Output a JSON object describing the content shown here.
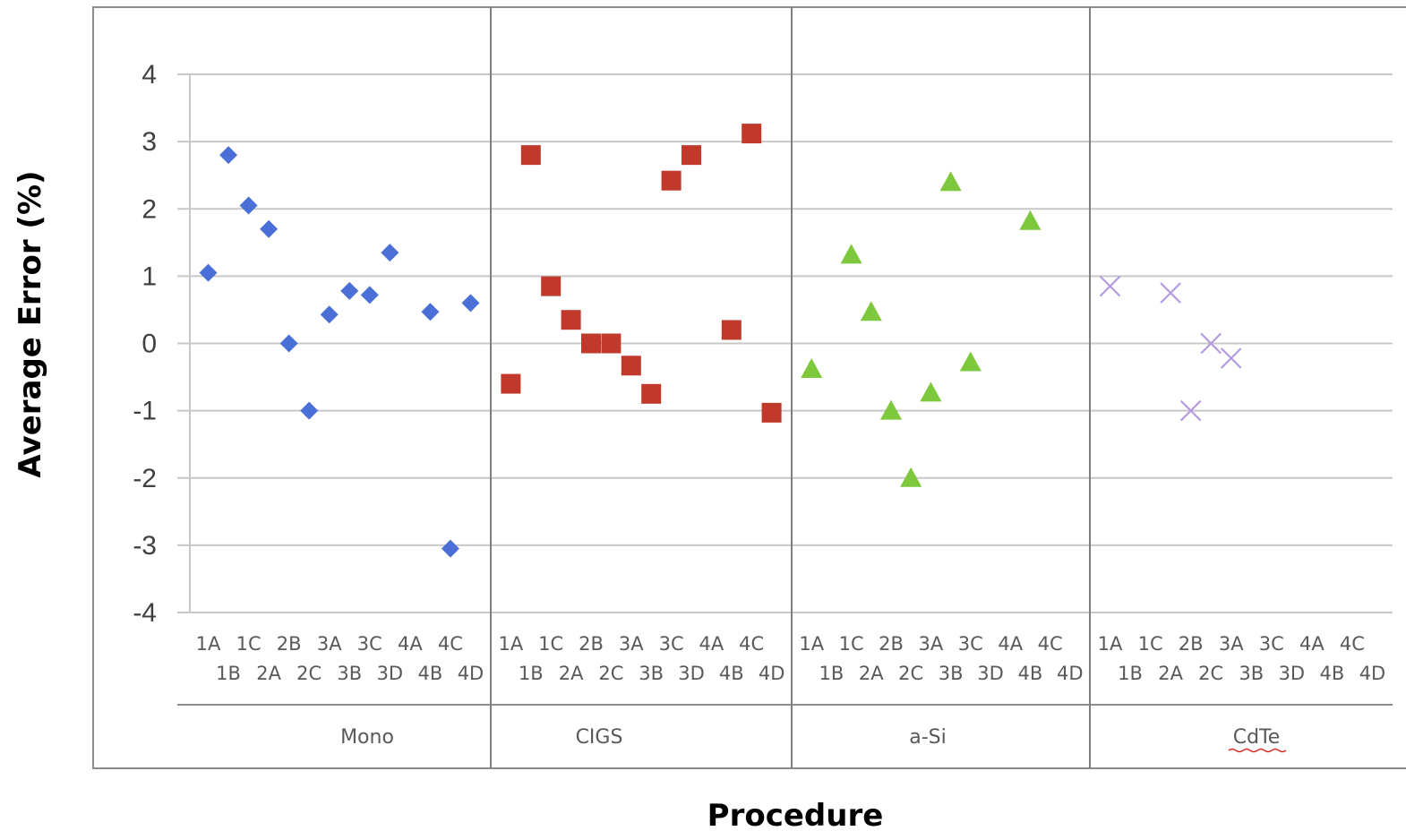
{
  "chart_data": {
    "type": "scatter",
    "title": "",
    "xlabel": "Procedure",
    "ylabel": "Average Error (%)",
    "ylim": [
      -4,
      4
    ],
    "yticks": [
      "4",
      "3",
      "2",
      "1",
      "0",
      "-1",
      "-2",
      "-3",
      "-4"
    ],
    "grid": true,
    "legend": "none",
    "procedures": [
      "1A",
      "1B",
      "1C",
      "2A",
      "2B",
      "2C",
      "3A",
      "3B",
      "3C",
      "3D",
      "4A",
      "4B",
      "4C",
      "4D"
    ],
    "series": [
      {
        "name": "Mono",
        "color": "#4A6FD6",
        "marker": "diamond",
        "points": [
          {
            "x": "1A",
            "y": 1.05
          },
          {
            "x": "1B",
            "y": 2.8
          },
          {
            "x": "1C",
            "y": 2.05
          },
          {
            "x": "2A",
            "y": 1.7
          },
          {
            "x": "2B",
            "y": 0.0
          },
          {
            "x": "2C",
            "y": -1.0
          },
          {
            "x": "3A",
            "y": 0.43
          },
          {
            "x": "3B",
            "y": 0.78
          },
          {
            "x": "3C",
            "y": 0.72
          },
          {
            "x": "3D",
            "y": 1.35
          },
          {
            "x": "4B",
            "y": 0.47
          },
          {
            "x": "4C",
            "y": -3.05
          },
          {
            "x": "4D",
            "y": 0.6
          }
        ]
      },
      {
        "name": "CIGS",
        "color": "#C0392B",
        "marker": "square",
        "points": [
          {
            "x": "1A",
            "y": -0.6
          },
          {
            "x": "1B",
            "y": 2.8
          },
          {
            "x": "1C",
            "y": 0.85
          },
          {
            "x": "2A",
            "y": 0.35
          },
          {
            "x": "2B",
            "y": 0.0
          },
          {
            "x": "2C",
            "y": 0.0
          },
          {
            "x": "3A",
            "y": -0.33
          },
          {
            "x": "3B",
            "y": -0.75
          },
          {
            "x": "3C",
            "y": 2.42
          },
          {
            "x": "3D",
            "y": 2.8
          },
          {
            "x": "4B",
            "y": 0.2
          },
          {
            "x": "4C",
            "y": 3.12
          },
          {
            "x": "4D",
            "y": -1.03
          }
        ]
      },
      {
        "name": "a-Si",
        "color": "#7DC83C",
        "marker": "triangle",
        "points": [
          {
            "x": "1A",
            "y": -0.38
          },
          {
            "x": "1C",
            "y": 1.32
          },
          {
            "x": "2A",
            "y": 0.47
          },
          {
            "x": "2B",
            "y": -1.0
          },
          {
            "x": "2C",
            "y": -2.0
          },
          {
            "x": "3A",
            "y": -0.73
          },
          {
            "x": "3B",
            "y": 2.4
          },
          {
            "x": "3C",
            "y": -0.28
          },
          {
            "x": "4B",
            "y": 1.82
          }
        ]
      },
      {
        "name": "CdTe",
        "color": "#B49AE0",
        "marker": "x",
        "points": [
          {
            "x": "1A",
            "y": 0.85
          },
          {
            "x": "2A",
            "y": 0.75
          },
          {
            "x": "2B",
            "y": -1.0
          },
          {
            "x": "2C",
            "y": 0.0
          },
          {
            "x": "3A",
            "y": -0.22
          }
        ]
      }
    ]
  }
}
